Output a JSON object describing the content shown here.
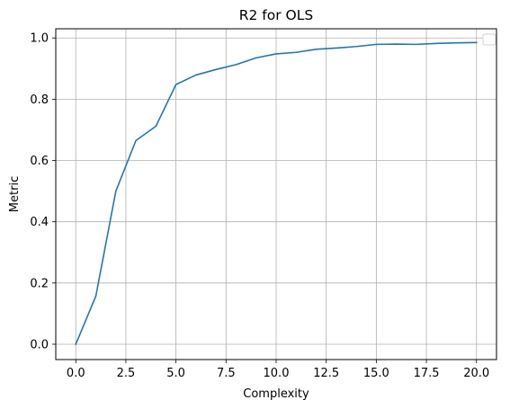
{
  "chart_data": {
    "type": "line",
    "title": "R2 for OLS",
    "xlabel": "Complexity",
    "ylabel": "Metric",
    "xlim": [
      -1,
      21
    ],
    "ylim": [
      -0.05,
      1.03
    ],
    "xticks": [
      0,
      2.5,
      5,
      7.5,
      10,
      12.5,
      15,
      17.5,
      20
    ],
    "xtick_labels": [
      "0.0",
      "2.5",
      "5.0",
      "7.5",
      "10.0",
      "12.5",
      "15.0",
      "17.5",
      "20.0"
    ],
    "yticks": [
      0,
      0.2,
      0.4,
      0.6,
      0.8,
      1.0
    ],
    "ytick_labels": [
      "0.0",
      "0.2",
      "0.4",
      "0.6",
      "0.8",
      "1.0"
    ],
    "grid": true,
    "legend": "top-right (empty)",
    "series": [
      {
        "color": "#1f77b4",
        "x": [
          0,
          1,
          2,
          3,
          4,
          5,
          6,
          7,
          8,
          9,
          10,
          11,
          12,
          13,
          14,
          15,
          16,
          17,
          18,
          19,
          20
        ],
        "values": [
          0.0,
          0.157,
          0.5,
          0.665,
          0.712,
          0.848,
          0.879,
          0.897,
          0.913,
          0.935,
          0.948,
          0.953,
          0.963,
          0.967,
          0.972,
          0.979,
          0.98,
          0.979,
          0.982,
          0.984,
          0.985
        ]
      }
    ]
  }
}
